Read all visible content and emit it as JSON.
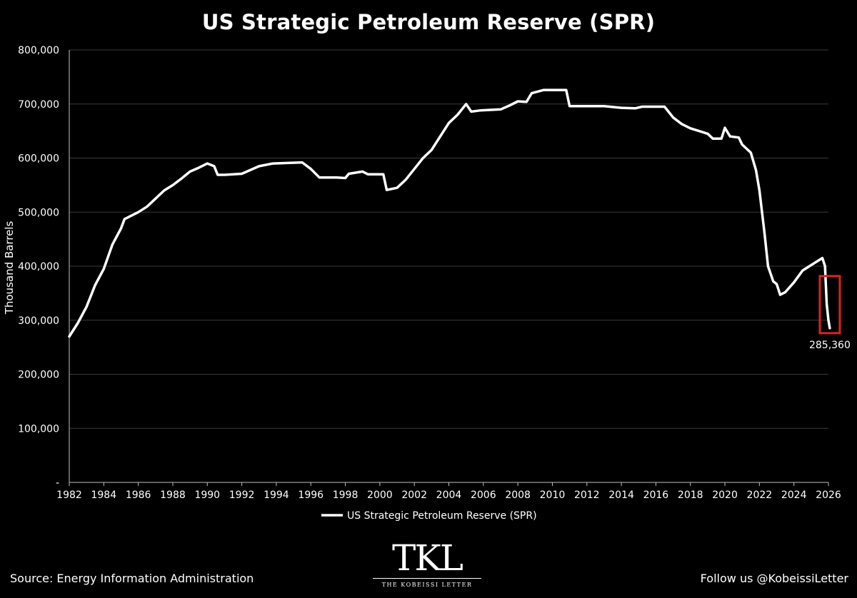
{
  "chart_data": {
    "type": "line",
    "title": "US Strategic Petroleum Reserve (SPR)",
    "ylabel": "Thousand Barrels",
    "xlabel": "",
    "xlim": [
      1982,
      2026
    ],
    "ylim": [
      0,
      800000
    ],
    "x_ticks": [
      "1982",
      "1984",
      "1986",
      "1988",
      "1990",
      "1992",
      "1994",
      "1996",
      "1998",
      "2000",
      "2002",
      "2004",
      "2006",
      "2008",
      "2010",
      "2012",
      "2014",
      "2016",
      "2018",
      "2020",
      "2022",
      "2024",
      "2026"
    ],
    "y_ticks": [
      {
        "value": 0,
        "label": "-"
      },
      {
        "value": 100000,
        "label": "100,000"
      },
      {
        "value": 200000,
        "label": "200,000"
      },
      {
        "value": 300000,
        "label": "300,000"
      },
      {
        "value": 400000,
        "label": "400,000"
      },
      {
        "value": 500000,
        "label": "500,000"
      },
      {
        "value": 600000,
        "label": "600,000"
      },
      {
        "value": 700000,
        "label": "700,000"
      },
      {
        "value": 800000,
        "label": "800,000"
      }
    ],
    "grid": true,
    "legend": "bottom",
    "series": [
      {
        "name": "US Strategic Petroleum Reserve (SPR)",
        "color": "#ffffff",
        "points": [
          [
            1982.0,
            270000
          ],
          [
            1982.5,
            295000
          ],
          [
            1983.0,
            325000
          ],
          [
            1983.5,
            365000
          ],
          [
            1984.0,
            395000
          ],
          [
            1984.5,
            440000
          ],
          [
            1985.0,
            470000
          ],
          [
            1985.2,
            487000
          ],
          [
            1986.0,
            500000
          ],
          [
            1986.5,
            510000
          ],
          [
            1987.0,
            525000
          ],
          [
            1987.5,
            540000
          ],
          [
            1988.0,
            550000
          ],
          [
            1988.5,
            562000
          ],
          [
            1989.0,
            575000
          ],
          [
            1989.5,
            582000
          ],
          [
            1990.0,
            590000
          ],
          [
            1990.4,
            585000
          ],
          [
            1990.6,
            569000
          ],
          [
            1991.0,
            569000
          ],
          [
            1992.0,
            571000
          ],
          [
            1993.0,
            585000
          ],
          [
            1993.8,
            590000
          ],
          [
            1995.5,
            592000
          ],
          [
            1996.0,
            580000
          ],
          [
            1996.5,
            564000
          ],
          [
            1997.5,
            564000
          ],
          [
            1998.0,
            563000
          ],
          [
            1998.2,
            571000
          ],
          [
            1999.0,
            575000
          ],
          [
            1999.3,
            570000
          ],
          [
            2000.2,
            570000
          ],
          [
            2000.4,
            541000
          ],
          [
            2001.0,
            545000
          ],
          [
            2001.5,
            560000
          ],
          [
            2002.0,
            580000
          ],
          [
            2002.5,
            600000
          ],
          [
            2003.0,
            615000
          ],
          [
            2003.5,
            640000
          ],
          [
            2004.0,
            665000
          ],
          [
            2004.5,
            680000
          ],
          [
            2005.0,
            700000
          ],
          [
            2005.3,
            686000
          ],
          [
            2005.8,
            688000
          ],
          [
            2007.0,
            690000
          ],
          [
            2007.5,
            697000
          ],
          [
            2008.0,
            705000
          ],
          [
            2008.5,
            704000
          ],
          [
            2008.8,
            720000
          ],
          [
            2009.5,
            726000
          ],
          [
            2010.8,
            726000
          ],
          [
            2011.0,
            696000
          ],
          [
            2012.0,
            696000
          ],
          [
            2013.0,
            696000
          ],
          [
            2014.0,
            693000
          ],
          [
            2014.8,
            692000
          ],
          [
            2015.2,
            695000
          ],
          [
            2016.5,
            695000
          ],
          [
            2017.0,
            675000
          ],
          [
            2017.5,
            663000
          ],
          [
            2018.0,
            655000
          ],
          [
            2018.5,
            650000
          ],
          [
            2019.0,
            645000
          ],
          [
            2019.3,
            636000
          ],
          [
            2019.8,
            636000
          ],
          [
            2020.0,
            656000
          ],
          [
            2020.3,
            640000
          ],
          [
            2020.8,
            638000
          ],
          [
            2021.0,
            625000
          ],
          [
            2021.5,
            610000
          ],
          [
            2021.8,
            578000
          ],
          [
            2022.0,
            540000
          ],
          [
            2022.3,
            460000
          ],
          [
            2022.5,
            400000
          ],
          [
            2022.8,
            372000
          ],
          [
            2023.0,
            367000
          ],
          [
            2023.2,
            347000
          ],
          [
            2023.5,
            352000
          ],
          [
            2024.0,
            370000
          ],
          [
            2024.5,
            392000
          ],
          [
            2025.0,
            402000
          ],
          [
            2025.5,
            412000
          ],
          [
            2025.65,
            415000
          ],
          [
            2025.8,
            400000
          ],
          [
            2025.9,
            330000
          ],
          [
            2026.0,
            300000
          ],
          [
            2026.08,
            285360
          ]
        ]
      }
    ],
    "annotations": [
      {
        "text": "285,360",
        "x": 2026.08,
        "y": 285360,
        "box_color": "#e02020"
      }
    ]
  },
  "source_text": "Source: Energy Information Administration",
  "follow_text": "Follow us @KobeissiLetter",
  "logo": {
    "mark": "TKL",
    "subtitle": "THE KOBEISSI LETTER"
  }
}
